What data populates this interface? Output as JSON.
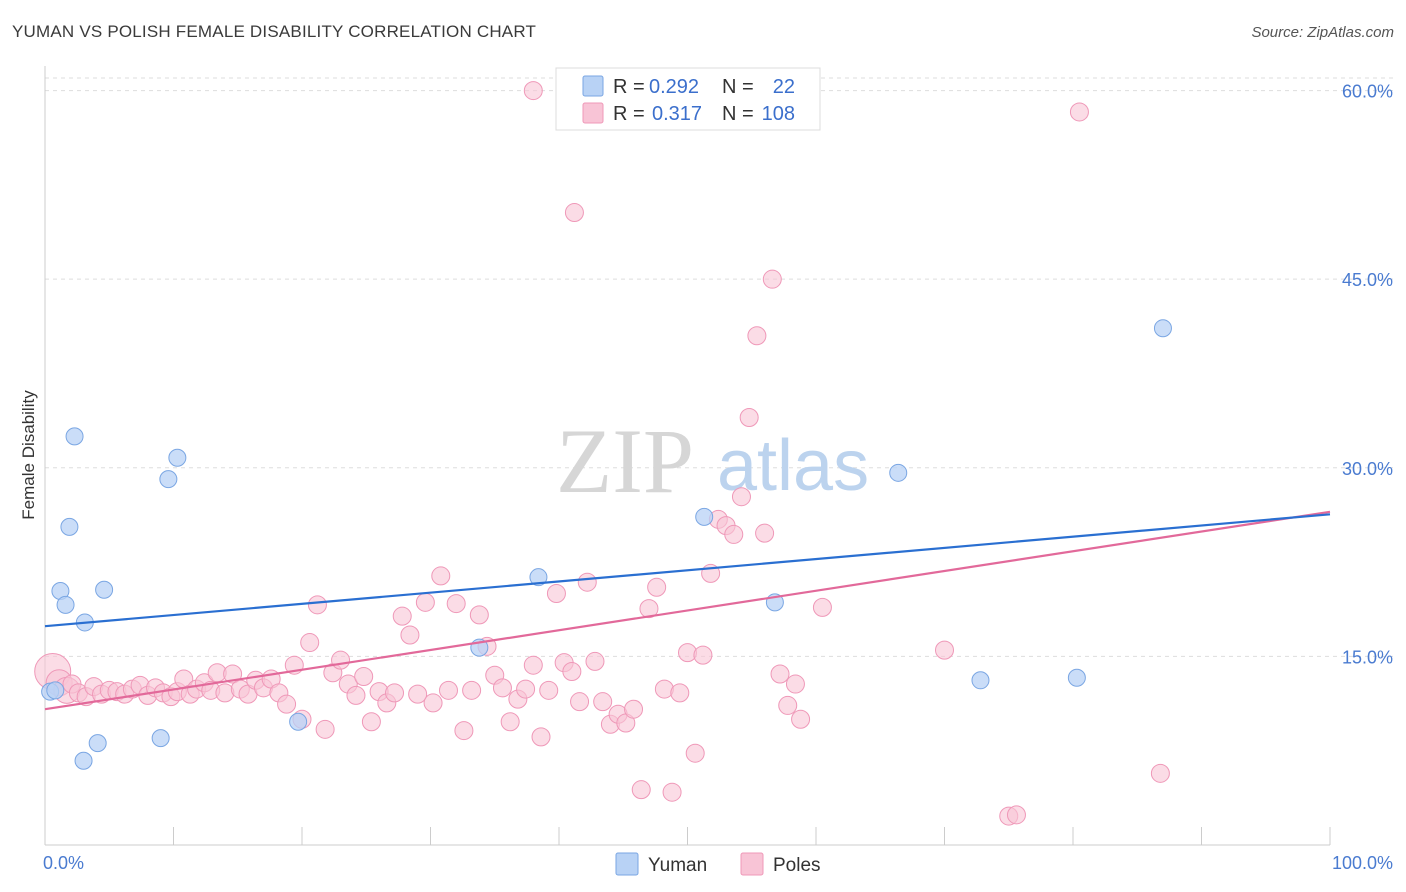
{
  "title": "YUMAN VS POLISH FEMALE DISABILITY CORRELATION CHART",
  "source": "Source: ZipAtlas.com",
  "watermark": {
    "zip": "ZIP",
    "atlas": "atlas"
  },
  "colors": {
    "yuman_fill": "#b8d2f5",
    "yuman_stroke": "#7aa6e3",
    "yuman_line": "#2a6fd1",
    "poles_fill": "#f8c4d6",
    "poles_stroke": "#ef98b8",
    "poles_line": "#e2699a",
    "axis_text": "#4a7bd0",
    "grid": "#dddddd"
  },
  "legend": {
    "rows": [
      {
        "r_label": "R =",
        "r_value": "0.292",
        "n_label": "N =",
        "n_value": "22"
      },
      {
        "r_label": "R =",
        "r_value": "0.317",
        "n_label": "N =",
        "n_value": "108"
      }
    ]
  },
  "bottom_legend": [
    "Yuman",
    "Poles"
  ],
  "chart_data": {
    "type": "scatter",
    "title": "YUMAN VS POLISH FEMALE DISABILITY CORRELATION CHART",
    "xlabel": "",
    "ylabel": "Female Disability",
    "xlim": [
      0,
      100
    ],
    "ylim": [
      0,
      61
    ],
    "x_tick_labels": [
      "0.0%",
      "100.0%"
    ],
    "y_ticks": [
      15,
      30,
      45,
      60
    ],
    "y_tick_labels": [
      "15.0%",
      "30.0%",
      "45.0%",
      "60.0%"
    ],
    "series": [
      {
        "name": "Yuman",
        "R": 0.292,
        "N": 22,
        "trend": {
          "x": [
            0,
            100
          ],
          "y": [
            17.4,
            26.3
          ]
        },
        "x": [
          0.4,
          1.2,
          1.6,
          1.9,
          2.3,
          3.0,
          3.1,
          4.1,
          4.6,
          9.0,
          9.6,
          10.3,
          19.7,
          33.8,
          38.4,
          51.3,
          56.8,
          66.4,
          72.8,
          80.3,
          87.0,
          0.8
        ],
        "y": [
          12.2,
          20.2,
          19.1,
          25.3,
          32.5,
          6.7,
          17.7,
          8.1,
          20.3,
          8.5,
          29.1,
          30.8,
          9.8,
          15.7,
          21.3,
          26.1,
          19.3,
          29.6,
          13.1,
          13.3,
          41.1,
          12.3
        ]
      },
      {
        "name": "Poles",
        "R": 0.317,
        "N": 108,
        "trend": {
          "x": [
            0,
            100
          ],
          "y": [
            10.8,
            26.5
          ]
        },
        "x": [
          0.6,
          1.1,
          1.7,
          2.1,
          2.6,
          3.2,
          3.8,
          4.4,
          5.0,
          5.6,
          6.2,
          6.8,
          7.4,
          8.0,
          8.6,
          9.2,
          9.8,
          10.3,
          10.8,
          11.3,
          11.8,
          12.4,
          12.9,
          13.4,
          14.0,
          14.6,
          15.2,
          15.8,
          16.4,
          17.0,
          17.6,
          18.2,
          18.8,
          19.4,
          20.0,
          20.6,
          21.2,
          21.8,
          22.4,
          23.0,
          23.6,
          24.2,
          24.8,
          25.4,
          26.0,
          26.6,
          27.2,
          27.8,
          28.4,
          29.0,
          29.6,
          30.2,
          30.8,
          31.4,
          32.0,
          32.6,
          33.2,
          33.8,
          34.4,
          35.0,
          35.6,
          36.2,
          36.8,
          37.4,
          38.0,
          38.6,
          39.2,
          39.8,
          40.4,
          41.0,
          41.6,
          42.2,
          42.8,
          43.4,
          44.0,
          44.6,
          45.2,
          45.8,
          46.4,
          47.0,
          47.6,
          48.2,
          48.8,
          49.4,
          50.0,
          50.6,
          51.2,
          51.8,
          52.4,
          53.0,
          53.6,
          54.2,
          54.8,
          55.4,
          56.0,
          56.6,
          57.2,
          57.8,
          58.4,
          58.8,
          75.0,
          75.6,
          80.5,
          86.8,
          38.0,
          41.2,
          70.0,
          60.5
        ],
        "y": [
          13.8,
          12.9,
          12.3,
          12.8,
          12.1,
          11.8,
          12.6,
          12.0,
          12.3,
          12.2,
          12.0,
          12.4,
          12.7,
          11.9,
          12.5,
          12.1,
          11.8,
          12.2,
          13.2,
          12.0,
          12.4,
          12.9,
          12.3,
          13.7,
          12.1,
          13.6,
          12.4,
          12.0,
          13.1,
          12.5,
          13.2,
          12.1,
          11.2,
          14.3,
          10.0,
          16.1,
          19.1,
          9.2,
          13.7,
          14.7,
          12.8,
          11.9,
          13.4,
          9.8,
          12.2,
          11.3,
          12.1,
          18.2,
          16.7,
          12.0,
          19.3,
          11.3,
          21.4,
          12.3,
          19.2,
          9.1,
          12.3,
          18.3,
          15.8,
          13.5,
          12.5,
          9.8,
          11.6,
          12.4,
          14.3,
          8.6,
          12.3,
          20.0,
          14.5,
          13.8,
          11.4,
          20.9,
          14.6,
          11.4,
          9.6,
          10.4,
          9.7,
          10.8,
          4.4,
          18.8,
          20.5,
          12.4,
          4.2,
          12.1,
          15.3,
          7.3,
          15.1,
          21.6,
          25.9,
          25.4,
          24.7,
          27.7,
          34.0,
          40.5,
          24.8,
          45.0,
          13.6,
          11.1,
          12.8,
          10.0,
          2.3,
          2.4,
          58.3,
          5.7,
          60.0,
          50.3,
          15.5,
          18.9
        ]
      }
    ]
  }
}
